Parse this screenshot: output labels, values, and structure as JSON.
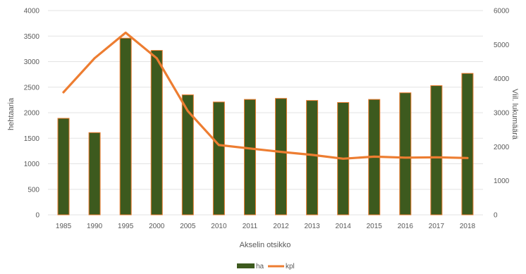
{
  "chart_data": {
    "type": "bar",
    "categories": [
      "1985",
      "1990",
      "1995",
      "2000",
      "2005",
      "2010",
      "2011",
      "2012",
      "2013",
      "2014",
      "2015",
      "2016",
      "2017",
      "2018"
    ],
    "series": [
      {
        "name": "ha",
        "type": "bar",
        "axis": "left",
        "color": "#3d5a1e",
        "edge_color": "#ed7d31",
        "values": [
          1890,
          1610,
          3460,
          3220,
          2350,
          2210,
          2260,
          2280,
          2240,
          2200,
          2260,
          2390,
          2530,
          2770
        ]
      },
      {
        "name": "kpl",
        "type": "line",
        "axis": "right",
        "color": "#ed7d31",
        "values": [
          3600,
          4600,
          5350,
          4600,
          3050,
          2050,
          1950,
          1850,
          1760,
          1650,
          1710,
          1680,
          1690,
          1670
        ]
      }
    ],
    "xlabel": "Akselin otsikko",
    "ylabel": "hehtaaria",
    "y2label": "Viil. lukumäärä",
    "ylim": [
      0,
      4000
    ],
    "y2lim": [
      0,
      6000
    ],
    "yticks": [
      "0",
      "500",
      "1000",
      "1500",
      "2000",
      "2500",
      "3000",
      "3500",
      "4000"
    ],
    "y2ticks": [
      "0",
      "1000",
      "2000",
      "3000",
      "4000",
      "5000",
      "6000"
    ],
    "grid": true,
    "legend_position": "bottom"
  }
}
